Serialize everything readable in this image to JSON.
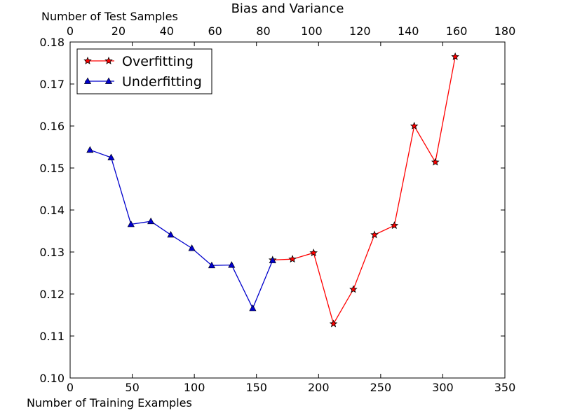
{
  "chart_data": {
    "type": "line",
    "title": "Bias and Variance",
    "xlabel": "Number of Training Examples",
    "ylabel": "",
    "top_xlabel": "Number of Test Samples",
    "xlim": [
      0,
      350
    ],
    "ylim": [
      0.1,
      0.18
    ],
    "top_xlim": [
      0,
      180
    ],
    "x_ticks": [
      "0",
      "50",
      "100",
      "150",
      "200",
      "250",
      "300",
      "350"
    ],
    "top_x_ticks": [
      "0",
      "20",
      "40",
      "60",
      "80",
      "100",
      "120",
      "140",
      "160",
      "180"
    ],
    "y_ticks": [
      "0.10",
      "0.11",
      "0.12",
      "0.13",
      "0.14",
      "0.15",
      "0.16",
      "0.17",
      "0.18"
    ],
    "grid": false,
    "legend_position": "top-left",
    "series": [
      {
        "name": "Overfitting",
        "color": "#ff0000",
        "marker": "star",
        "points": [
          [
            163,
            0.1281
          ],
          [
            179,
            0.1283
          ],
          [
            196,
            0.1298
          ],
          [
            212,
            0.1129
          ],
          [
            228,
            0.1211
          ],
          [
            245,
            0.1341
          ],
          [
            261,
            0.1363
          ],
          [
            277,
            0.16
          ],
          [
            294,
            0.1514
          ],
          [
            310,
            0.1765
          ]
        ]
      },
      {
        "name": "Underfitting",
        "color": "#0000cc",
        "marker": "triangle",
        "points": [
          [
            16,
            0.1543
          ],
          [
            33,
            0.1525
          ],
          [
            49,
            0.1366
          ],
          [
            65,
            0.1373
          ],
          [
            81,
            0.1341
          ],
          [
            98,
            0.1309
          ],
          [
            114,
            0.1268
          ],
          [
            130,
            0.1269
          ],
          [
            147,
            0.1166
          ],
          [
            163,
            0.128
          ]
        ]
      }
    ]
  }
}
